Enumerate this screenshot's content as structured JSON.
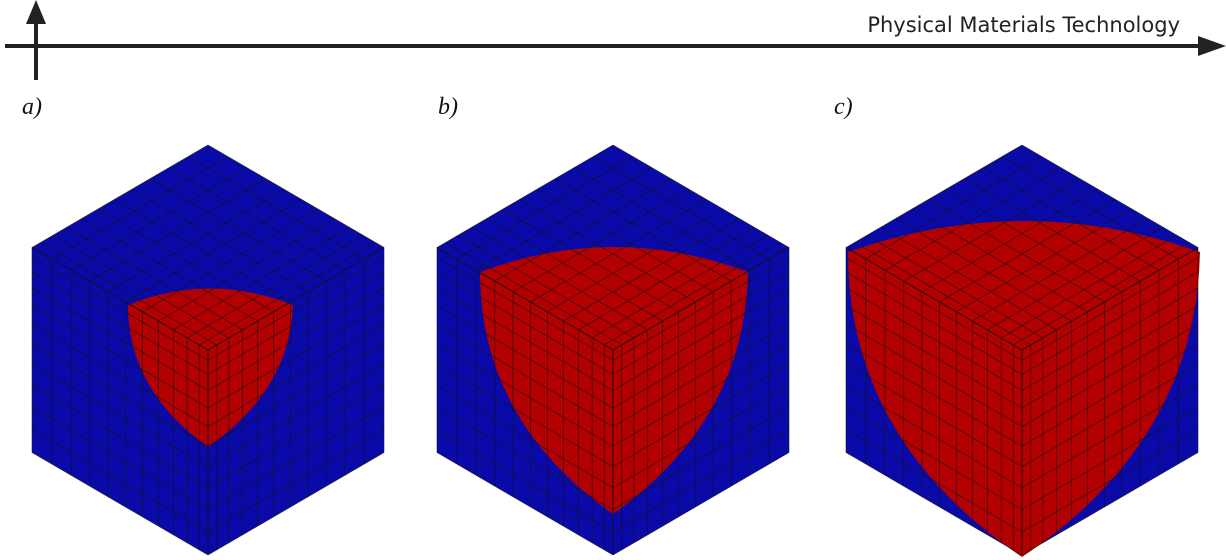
{
  "header": {
    "title": "Physical Materials Technology"
  },
  "panels": [
    {
      "label": "a)"
    },
    {
      "label": "b)"
    },
    {
      "label": "c)"
    }
  ]
}
